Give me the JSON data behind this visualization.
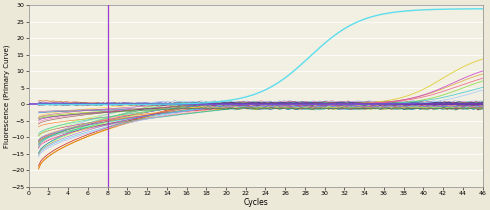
{
  "background_color": "#ede9d8",
  "plot_bg_color": "#f2efe3",
  "xlim": [
    0,
    46
  ],
  "ylim": [
    -25,
    30
  ],
  "xticks": [
    0,
    2,
    4,
    6,
    8,
    10,
    12,
    14,
    16,
    18,
    20,
    22,
    24,
    26,
    28,
    30,
    32,
    34,
    36,
    38,
    40,
    42,
    44,
    46
  ],
  "yticks": [
    -25,
    -20,
    -15,
    -10,
    -5,
    0,
    5,
    10,
    15,
    20,
    25,
    30
  ],
  "xlabel": "Cycles",
  "ylabel": "Fluorescence (Primary Curve)",
  "vline_x": 8,
  "vline_color": "#9933cc",
  "hline_color": "#6633cc",
  "sigmoid_peak": 29,
  "sigmoid_color": "#55ddee",
  "sigmoid_x0": 28.5,
  "sigmoid_k": 0.38
}
